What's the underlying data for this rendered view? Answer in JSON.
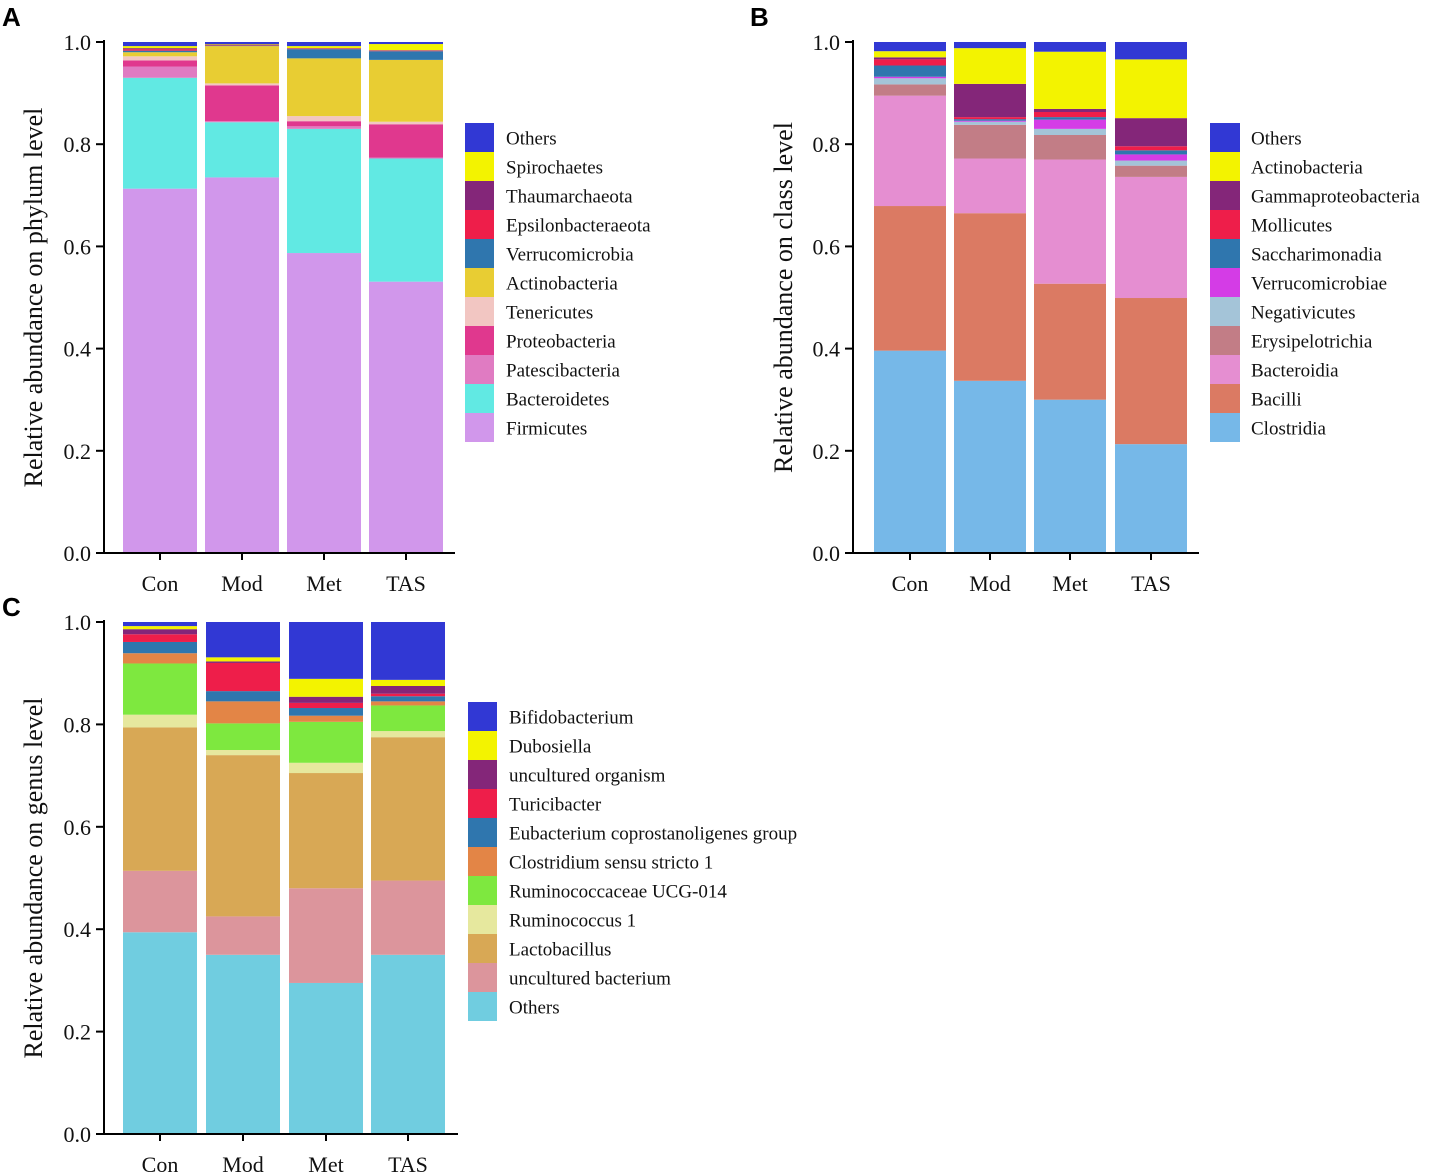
{
  "chart_data": [
    {
      "panel": "A",
      "type": "bar",
      "stacked": true,
      "title": "",
      "xlabel": "",
      "ylabel": "Relative abundance on phylum level",
      "ylim": [
        0,
        1.0
      ],
      "yticks": [
        "0.0",
        "0.2",
        "0.4",
        "0.6",
        "0.8",
        "1.0"
      ],
      "categories": [
        "Con",
        "Mod",
        "Met",
        "TAS"
      ],
      "series": [
        {
          "name": "Firmicutes",
          "color": "#D197EB",
          "values": [
            0.713,
            0.735,
            0.587,
            0.531
          ]
        },
        {
          "name": "Bacteroidetes",
          "color": "#61E9E3",
          "values": [
            0.217,
            0.108,
            0.243,
            0.241
          ]
        },
        {
          "name": "Patescibacteria",
          "color": "#E07BC2",
          "values": [
            0.022,
            0.002,
            0.005,
            0.002
          ]
        },
        {
          "name": "Proteobacteria",
          "color": "#E0388E",
          "values": [
            0.012,
            0.07,
            0.01,
            0.065
          ]
        },
        {
          "name": "Tenericutes",
          "color": "#F2C6C2",
          "values": [
            0.008,
            0.004,
            0.01,
            0.005
          ]
        },
        {
          "name": "Actinobacteria",
          "color": "#E8CD33",
          "values": [
            0.008,
            0.073,
            0.113,
            0.121
          ]
        },
        {
          "name": "Verrucomicrobia",
          "color": "#2F76AE",
          "values": [
            0.003,
            0.001,
            0.018,
            0.017
          ]
        },
        {
          "name": "Epsilonbacteraeota",
          "color": "#EE1E4A",
          "values": [
            0.003,
            0.001,
            0.001,
            0.001
          ]
        },
        {
          "name": "Thaumarchaeota",
          "color": "#842679",
          "values": [
            0.002,
            0.001,
            0.001,
            0.001
          ]
        },
        {
          "name": "Spirochaetes",
          "color": "#F3F300",
          "values": [
            0.004,
            0.001,
            0.004,
            0.012
          ]
        },
        {
          "name": "Others",
          "color": "#3138D4",
          "values": [
            0.008,
            0.004,
            0.008,
            0.004
          ]
        }
      ],
      "legend_placement": "right"
    },
    {
      "panel": "B",
      "type": "bar",
      "stacked": true,
      "title": "",
      "xlabel": "",
      "ylabel": "Relative abundance on class level",
      "ylim": [
        0,
        1.0
      ],
      "yticks": [
        "0.0",
        "0.2",
        "0.4",
        "0.6",
        "0.8",
        "1.0"
      ],
      "categories": [
        "Con",
        "Mod",
        "Met",
        "TAS"
      ],
      "series": [
        {
          "name": "Clostridia",
          "color": "#76B8E8",
          "values": [
            0.396,
            0.337,
            0.3,
            0.213
          ]
        },
        {
          "name": "Bacilli",
          "color": "#DB7A63",
          "values": [
            0.283,
            0.328,
            0.227,
            0.286
          ]
        },
        {
          "name": "Bacteroidia",
          "color": "#E58ED1",
          "values": [
            0.216,
            0.107,
            0.243,
            0.237
          ]
        },
        {
          "name": "Erysipelotrichia",
          "color": "#C27D86",
          "values": [
            0.022,
            0.066,
            0.048,
            0.022
          ]
        },
        {
          "name": "Negativicutes",
          "color": "#A4C4D8",
          "values": [
            0.012,
            0.006,
            0.012,
            0.01
          ]
        },
        {
          "name": "Verrucomicrobiae",
          "color": "#D43CE6",
          "values": [
            0.003,
            0.002,
            0.018,
            0.012
          ]
        },
        {
          "name": "Saccharimonadia",
          "color": "#2F76AE",
          "values": [
            0.022,
            0.003,
            0.005,
            0.008
          ]
        },
        {
          "name": "Mollicutes",
          "color": "#EE1E4A",
          "values": [
            0.012,
            0.004,
            0.01,
            0.008
          ]
        },
        {
          "name": "Gammaproteobacteria",
          "color": "#842679",
          "values": [
            0.004,
            0.065,
            0.006,
            0.055
          ]
        },
        {
          "name": "Actinobacteria",
          "color": "#F3F300",
          "values": [
            0.012,
            0.07,
            0.112,
            0.115
          ]
        },
        {
          "name": "Others",
          "color": "#3138D4",
          "values": [
            0.018,
            0.012,
            0.019,
            0.034
          ]
        }
      ],
      "legend_placement": "right"
    },
    {
      "panel": "C",
      "type": "bar",
      "stacked": true,
      "title": "",
      "xlabel": "",
      "ylabel": "Relative abundance on genus level",
      "ylim": [
        0,
        1.0
      ],
      "yticks": [
        "0.0",
        "0.2",
        "0.4",
        "0.6",
        "0.8",
        "1.0"
      ],
      "categories": [
        "Con",
        "Mod",
        "Met",
        "TAS"
      ],
      "series": [
        {
          "name": "Others",
          "color": "#70CDE0",
          "values": [
            0.394,
            0.35,
            0.295,
            0.35
          ]
        },
        {
          "name": "uncultured bacterium",
          "color": "#DC959C",
          "values": [
            0.12,
            0.075,
            0.185,
            0.145
          ]
        },
        {
          "name": "Lactobacillus",
          "color": "#D8A855",
          "values": [
            0.28,
            0.315,
            0.225,
            0.28
          ]
        },
        {
          "name": "Ruminococcus 1",
          "color": "#E6E89E",
          "values": [
            0.025,
            0.01,
            0.02,
            0.012
          ]
        },
        {
          "name": "Ruminococcaceae UCG-014",
          "color": "#7EE83F",
          "values": [
            0.1,
            0.052,
            0.08,
            0.05
          ]
        },
        {
          "name": "Clostridium sensu stricto 1",
          "color": "#E38546",
          "values": [
            0.02,
            0.043,
            0.012,
            0.008
          ]
        },
        {
          "name": "Eubacterium coprostanoligenes group",
          "color": "#2F76AE",
          "values": [
            0.022,
            0.02,
            0.015,
            0.01
          ]
        },
        {
          "name": "Turicibacter",
          "color": "#EE1E4A",
          "values": [
            0.015,
            0.055,
            0.01,
            0.005
          ]
        },
        {
          "name": "uncultured organism",
          "color": "#842679",
          "values": [
            0.01,
            0.003,
            0.012,
            0.015
          ]
        },
        {
          "name": "Dubosiella",
          "color": "#F3F300",
          "values": [
            0.006,
            0.008,
            0.035,
            0.012
          ]
        },
        {
          "name": "Bifidobacterium",
          "color": "#3138D4",
          "values": [
            0.008,
            0.069,
            0.111,
            0.113
          ]
        }
      ],
      "legend_placement": "right"
    }
  ]
}
